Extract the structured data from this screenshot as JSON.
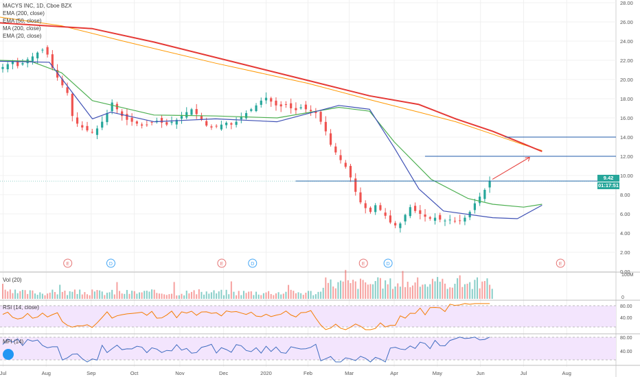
{
  "legend": {
    "title": "MACYS INC, 1D, Cboe BZX",
    "lines": [
      "EMA (200, close)",
      "EMA (50, close)",
      "MA (200, close)",
      "EMA (20, close)"
    ]
  },
  "panes": {
    "volume_label": "Vol (20)",
    "rsi_label": "RSI (14, close)",
    "mfi_label": "MFI (14)"
  },
  "price_tags": {
    "last_price": "9.42",
    "countdown": "01:17:51"
  },
  "colors": {
    "up": "#26a69a",
    "down": "#ef5350",
    "ema200": "#e53935",
    "ema50": "#4caf50",
    "ma200": "#ff9800",
    "ema20": "#3f51b5",
    "rsi": "#f57c00",
    "mfi": "#3f6cc0",
    "band": "#f3e5fd",
    "level": "#1e5aa8"
  },
  "chart_data": {
    "type": "candlestick",
    "ylim": [
      0,
      28
    ],
    "y_ticks": [
      "28.00",
      "26.00",
      "24.00",
      "22.00",
      "20.00",
      "18.00",
      "16.00",
      "14.00",
      "12.00",
      "10.00",
      "8.00",
      "6.00",
      "4.00",
      "2.00",
      "0.00"
    ],
    "x_ticks": [
      "Jul",
      "Aug",
      "Sep",
      "Oct",
      "Nov",
      "Dec",
      "2020",
      "Feb",
      "Mar",
      "Apr",
      "May",
      "Jun",
      "Jul",
      "Aug"
    ],
    "closes": [
      21.3,
      21.6,
      21.9,
      21.4,
      21.7,
      22.1,
      22.4,
      22.8,
      23.1,
      22.6,
      21.2,
      20.2,
      19.4,
      18.6,
      16.2,
      15.4,
      15.0,
      14.7,
      14.5,
      14.9,
      15.6,
      16.5,
      17.6,
      16.9,
      16.2,
      15.8,
      15.6,
      15.4,
      15.2,
      15.3,
      15.5,
      15.7,
      15.5,
      15.3,
      15.6,
      15.8,
      16.2,
      16.6,
      16.9,
      16.4,
      15.8,
      15.2,
      15.0,
      15.1,
      15.3,
      15.5,
      15.3,
      15.6,
      16.1,
      16.5,
      16.9,
      17.3,
      17.8,
      18.1,
      17.7,
      17.3,
      17.2,
      17.4,
      17.0,
      16.8,
      17.1,
      16.9,
      16.7,
      16.5,
      15.6,
      14.6,
      13.2,
      12.4,
      11.6,
      10.9,
      9.8,
      8.3,
      7.2,
      6.6,
      6.2,
      6.9,
      6.4,
      5.8,
      5.1,
      4.8,
      5.0,
      5.9,
      6.7,
      6.3,
      6.0,
      5.7,
      5.5,
      5.6,
      5.4,
      5.3,
      5.4,
      5.2,
      5.3,
      5.6,
      6.2,
      7.1,
      7.8,
      8.5,
      9.42
    ],
    "moving_averages": {
      "ema200": [
        [
          0,
          25.9
        ],
        [
          0.15,
          25.3
        ],
        [
          0.25,
          23.9
        ],
        [
          0.4,
          21.5
        ],
        [
          0.5,
          19.9
        ],
        [
          0.6,
          18.3
        ],
        [
          0.68,
          17.4
        ],
        [
          0.74,
          15.9
        ],
        [
          0.8,
          14.6
        ],
        [
          0.85,
          13.3
        ],
        [
          0.88,
          12.5
        ]
      ],
      "ma200": [
        [
          0,
          26.5
        ],
        [
          0.1,
          25.6
        ],
        [
          0.2,
          24.0
        ],
        [
          0.35,
          21.7
        ],
        [
          0.5,
          19.6
        ],
        [
          0.6,
          17.9
        ],
        [
          0.68,
          16.6
        ],
        [
          0.74,
          15.6
        ],
        [
          0.8,
          14.3
        ],
        [
          0.85,
          13.2
        ],
        [
          0.88,
          12.6
        ]
      ],
      "ema50": [
        [
          0,
          22.0
        ],
        [
          0.05,
          21.9
        ],
        [
          0.1,
          20.7
        ],
        [
          0.15,
          17.8
        ],
        [
          0.25,
          16.3
        ],
        [
          0.35,
          16.2
        ],
        [
          0.45,
          16.0
        ],
        [
          0.55,
          17.1
        ],
        [
          0.6,
          16.7
        ],
        [
          0.64,
          13.5
        ],
        [
          0.7,
          9.6
        ],
        [
          0.76,
          7.6
        ],
        [
          0.8,
          7.0
        ],
        [
          0.85,
          6.7
        ],
        [
          0.88,
          7.0
        ]
      ],
      "ema20": [
        [
          0,
          21.9
        ],
        [
          0.08,
          21.8
        ],
        [
          0.15,
          15.9
        ],
        [
          0.18,
          16.6
        ],
        [
          0.25,
          15.6
        ],
        [
          0.35,
          15.9
        ],
        [
          0.45,
          15.6
        ],
        [
          0.55,
          17.3
        ],
        [
          0.6,
          16.9
        ],
        [
          0.64,
          12.9
        ],
        [
          0.68,
          8.6
        ],
        [
          0.72,
          6.3
        ],
        [
          0.8,
          5.6
        ],
        [
          0.84,
          5.5
        ],
        [
          0.88,
          6.9
        ]
      ]
    },
    "horizontal_levels": [
      14.0,
      12.0,
      9.42
    ],
    "event_markers": [
      {
        "label": "E",
        "x": 0.11,
        "type": "earnings"
      },
      {
        "label": "D",
        "x": 0.18,
        "type": "dividend"
      },
      {
        "label": "E",
        "x": 0.36,
        "type": "earnings"
      },
      {
        "label": "D",
        "x": 0.41,
        "type": "dividend"
      },
      {
        "label": "E",
        "x": 0.59,
        "type": "earnings"
      },
      {
        "label": "D",
        "x": 0.63,
        "type": "dividend"
      },
      {
        "label": "E",
        "x": 0.91,
        "type": "earnings"
      }
    ],
    "volume_axis": [
      "100M",
      "0"
    ],
    "rsi_axis": [
      "80.00",
      "40.00"
    ],
    "mfi_axis": [
      "80.00",
      "40.00"
    ]
  }
}
